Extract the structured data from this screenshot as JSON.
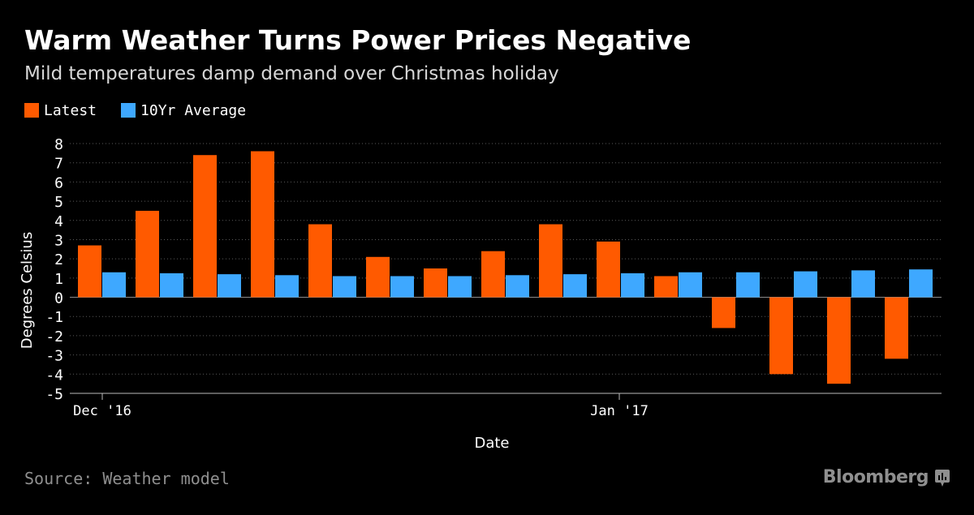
{
  "header": {
    "title": "Warm Weather Turns Power Prices Negative",
    "subtitle": "Mild temperatures damp demand over Christmas holiday"
  },
  "legend": [
    {
      "label": "Latest",
      "color": "#ff5a00"
    },
    {
      "label": "10Yr Average",
      "color": "#3ea8ff"
    }
  ],
  "footer": {
    "source": "Source: Weather model",
    "brand": "Bloomberg",
    "brand_icon": "bloomberg-terminal-icon"
  },
  "colors": {
    "background": "#000000",
    "latest": "#ff5a00",
    "average": "#3ea8ff",
    "grid": "#5a5a5a",
    "muted_text": "#8f8f8f"
  },
  "chart_data": {
    "type": "bar",
    "title": "Warm Weather Turns Power Prices Negative",
    "subtitle": "Mild temperatures damp demand over Christmas holiday",
    "xlabel": "Date",
    "ylabel": "Degrees Celsius",
    "ylim": [
      -5,
      8
    ],
    "yticks": [
      8,
      7,
      6,
      5,
      4,
      3,
      2,
      1,
      0,
      -1,
      -2,
      -3,
      -4,
      -5
    ],
    "grid": true,
    "legend_position": "top-left",
    "x_tick_labels": [
      {
        "label": "Dec '16",
        "at_index": 0
      },
      {
        "label": "Jan '17",
        "at_index": 9
      }
    ],
    "series": [
      {
        "name": "Latest",
        "color": "#ff5a00",
        "values": [
          2.7,
          4.5,
          7.4,
          7.6,
          3.8,
          2.1,
          1.5,
          2.4,
          3.8,
          2.9,
          1.1,
          -1.6,
          -4.0,
          -4.5,
          -3.2
        ]
      },
      {
        "name": "10Yr Average",
        "color": "#3ea8ff",
        "values": [
          1.3,
          1.25,
          1.2,
          1.15,
          1.1,
          1.1,
          1.1,
          1.15,
          1.2,
          1.25,
          1.3,
          1.3,
          1.35,
          1.4,
          1.45
        ]
      }
    ]
  }
}
